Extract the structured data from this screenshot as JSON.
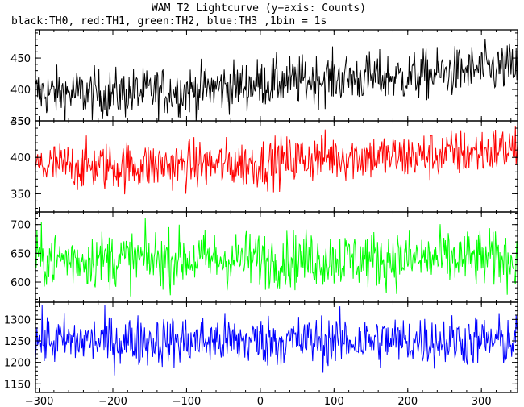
{
  "chart_data": {
    "type": "line",
    "title": "WAM T2 Lightcurve (y−axis: Counts)",
    "subtitle": "black:TH0, red:TH1, green:TH2, blue:TH3 ,1bin = 1s",
    "xlim": [
      -305,
      349
    ],
    "x_ticks": [
      "−300",
      "−200",
      "−100",
      "0",
      "100",
      "200",
      "300"
    ],
    "grid": false,
    "panels": [
      {
        "name": "TH0",
        "color": "#000000",
        "ylim": [
          350,
          495
        ],
        "y_ticks": [
          "450",
          "400",
          "350"
        ],
        "trend": [
          [
            -305,
            395
          ],
          [
            -200,
            393
          ],
          [
            -100,
            398
          ],
          [
            0,
            410
          ],
          [
            100,
            418
          ],
          [
            200,
            420
          ],
          [
            300,
            432
          ],
          [
            349,
            435
          ]
        ],
        "noise": 20
      },
      {
        "name": "TH1",
        "color": "#ff0000",
        "ylim": [
          325,
          450
        ],
        "y_ticks": [
          "450",
          "400",
          "350"
        ],
        "trend": [
          [
            -305,
            388
          ],
          [
            -200,
            388
          ],
          [
            -100,
            389
          ],
          [
            0,
            392
          ],
          [
            100,
            402
          ],
          [
            200,
            400
          ],
          [
            300,
            408
          ],
          [
            349,
            412
          ]
        ],
        "noise": 17
      },
      {
        "name": "TH2",
        "color": "#00ff00",
        "ylim": [
          565,
          722
        ],
        "y_ticks": [
          "700",
          "650",
          "600"
        ],
        "trend": [
          [
            -305,
            640
          ],
          [
            349,
            640
          ]
        ],
        "noise": 25
      },
      {
        "name": "TH3",
        "color": "#0000ff",
        "ylim": [
          1130,
          1340
        ],
        "y_ticks": [
          "1300",
          "1250",
          "1200",
          "1150"
        ],
        "trend": [
          [
            -305,
            1250
          ],
          [
            349,
            1250
          ]
        ],
        "noise": 30
      }
    ]
  }
}
